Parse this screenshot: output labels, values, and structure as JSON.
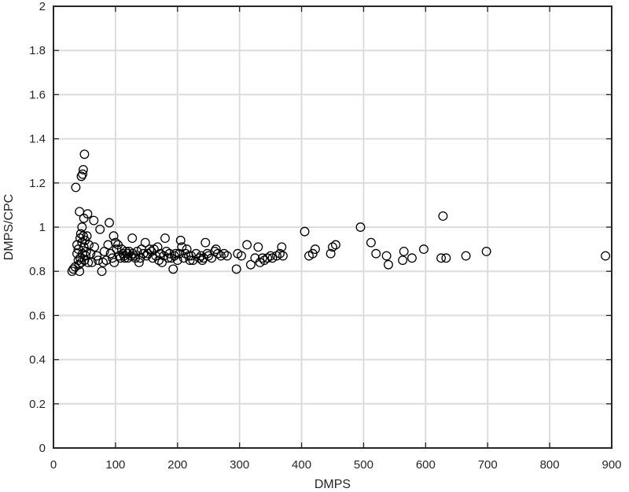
{
  "chart_data": {
    "type": "scatter",
    "title": "",
    "xlabel": "DMPS",
    "ylabel": "DMPS/CPC",
    "xlim": [
      0,
      900
    ],
    "ylim": [
      0,
      2
    ],
    "xticks": [
      0,
      100,
      200,
      300,
      400,
      500,
      600,
      700,
      800,
      900
    ],
    "yticks": [
      0,
      0.2,
      0.4,
      0.6,
      0.8,
      1,
      1.2,
      1.4,
      1.6,
      1.8,
      2
    ],
    "xtick_labels": [
      "0",
      "100",
      "200",
      "300",
      "400",
      "500",
      "600",
      "700",
      "800",
      "900"
    ],
    "ytick_labels": [
      "0",
      "0.2",
      "0.4",
      "0.6",
      "0.8",
      "1",
      "1.2",
      "1.4",
      "1.6",
      "1.8",
      "2"
    ],
    "grid": true,
    "marker": "open-circle",
    "series": [
      {
        "color": "#000000",
        "points": [
          [
            30,
            0.8
          ],
          [
            32,
            0.81
          ],
          [
            35,
            0.82
          ],
          [
            36,
            1.18
          ],
          [
            38,
            0.88
          ],
          [
            38,
            0.92
          ],
          [
            40,
            0.85
          ],
          [
            40,
            0.9
          ],
          [
            41,
            0.83
          ],
          [
            42,
            1.07
          ],
          [
            42,
            0.8
          ],
          [
            43,
            0.95
          ],
          [
            43,
            0.86
          ],
          [
            44,
            0.97
          ],
          [
            45,
            0.84
          ],
          [
            45,
            1.23
          ],
          [
            46,
            1.0
          ],
          [
            46,
            0.93
          ],
          [
            47,
            0.88
          ],
          [
            47,
            1.24
          ],
          [
            48,
            0.96
          ],
          [
            48,
            1.26
          ],
          [
            49,
            0.91
          ],
          [
            49,
            1.04
          ],
          [
            50,
            0.85
          ],
          [
            50,
            1.33
          ],
          [
            51,
            0.94
          ],
          [
            52,
            0.87
          ],
          [
            53,
            0.89
          ],
          [
            54,
            0.96
          ],
          [
            55,
            1.06
          ],
          [
            56,
            0.84
          ],
          [
            57,
            0.92
          ],
          [
            60,
            0.88
          ],
          [
            62,
            0.84
          ],
          [
            65,
            1.03
          ],
          [
            66,
            0.91
          ],
          [
            70,
            0.87
          ],
          [
            72,
            0.85
          ],
          [
            75,
            0.99
          ],
          [
            78,
            0.8
          ],
          [
            80,
            0.84
          ],
          [
            82,
            0.89
          ],
          [
            85,
            0.85
          ],
          [
            88,
            0.92
          ],
          [
            90,
            1.02
          ],
          [
            92,
            0.88
          ],
          [
            95,
            0.86
          ],
          [
            97,
            0.96
          ],
          [
            98,
            0.84
          ],
          [
            100,
            0.93
          ],
          [
            102,
            0.9
          ],
          [
            104,
            0.92
          ],
          [
            106,
            0.87
          ],
          [
            108,
            0.86
          ],
          [
            110,
            0.9
          ],
          [
            112,
            0.88
          ],
          [
            114,
            0.87
          ],
          [
            115,
            0.86
          ],
          [
            117,
            0.89
          ],
          [
            119,
            0.88
          ],
          [
            120,
            0.86
          ],
          [
            122,
            0.89
          ],
          [
            125,
            0.87
          ],
          [
            127,
            0.95
          ],
          [
            128,
            0.88
          ],
          [
            130,
            0.87
          ],
          [
            132,
            0.86
          ],
          [
            135,
            0.89
          ],
          [
            138,
            0.84
          ],
          [
            140,
            0.86
          ],
          [
            142,
            0.9
          ],
          [
            145,
            0.88
          ],
          [
            148,
            0.93
          ],
          [
            150,
            0.87
          ],
          [
            152,
            0.88
          ],
          [
            155,
            0.9
          ],
          [
            158,
            0.89
          ],
          [
            160,
            0.86
          ],
          [
            162,
            0.9
          ],
          [
            165,
            0.87
          ],
          [
            168,
            0.91
          ],
          [
            170,
            0.85
          ],
          [
            172,
            0.88
          ],
          [
            175,
            0.84
          ],
          [
            178,
            0.87
          ],
          [
            180,
            0.95
          ],
          [
            182,
            0.89
          ],
          [
            185,
            0.86
          ],
          [
            187,
            0.88
          ],
          [
            190,
            0.86
          ],
          [
            193,
            0.81
          ],
          [
            195,
            0.87
          ],
          [
            197,
            0.88
          ],
          [
            200,
            0.85
          ],
          [
            203,
            0.88
          ],
          [
            205,
            0.94
          ],
          [
            207,
            0.91
          ],
          [
            210,
            0.86
          ],
          [
            213,
            0.88
          ],
          [
            215,
            0.9
          ],
          [
            218,
            0.87
          ],
          [
            220,
            0.85
          ],
          [
            222,
            0.87
          ],
          [
            225,
            0.85
          ],
          [
            230,
            0.88
          ],
          [
            235,
            0.86
          ],
          [
            238,
            0.87
          ],
          [
            240,
            0.85
          ],
          [
            242,
            0.86
          ],
          [
            245,
            0.93
          ],
          [
            248,
            0.88
          ],
          [
            250,
            0.87
          ],
          [
            255,
            0.86
          ],
          [
            260,
            0.89
          ],
          [
            262,
            0.9
          ],
          [
            265,
            0.88
          ],
          [
            270,
            0.87
          ],
          [
            275,
            0.88
          ],
          [
            280,
            0.87
          ],
          [
            295,
            0.81
          ],
          [
            297,
            0.88
          ],
          [
            303,
            0.87
          ],
          [
            312,
            0.92
          ],
          [
            318,
            0.83
          ],
          [
            325,
            0.86
          ],
          [
            330,
            0.91
          ],
          [
            333,
            0.84
          ],
          [
            337,
            0.86
          ],
          [
            340,
            0.85
          ],
          [
            345,
            0.86
          ],
          [
            350,
            0.87
          ],
          [
            353,
            0.86
          ],
          [
            360,
            0.87
          ],
          [
            365,
            0.88
          ],
          [
            368,
            0.91
          ],
          [
            370,
            0.87
          ],
          [
            405,
            0.98
          ],
          [
            412,
            0.87
          ],
          [
            418,
            0.88
          ],
          [
            422,
            0.9
          ],
          [
            447,
            0.88
          ],
          [
            450,
            0.91
          ],
          [
            455,
            0.92
          ],
          [
            495,
            1.0
          ],
          [
            512,
            0.93
          ],
          [
            520,
            0.88
          ],
          [
            537,
            0.87
          ],
          [
            540,
            0.83
          ],
          [
            563,
            0.85
          ],
          [
            565,
            0.89
          ],
          [
            578,
            0.86
          ],
          [
            597,
            0.9
          ],
          [
            625,
            0.86
          ],
          [
            628,
            1.05
          ],
          [
            633,
            0.86
          ],
          [
            665,
            0.87
          ],
          [
            698,
            0.89
          ],
          [
            890,
            0.87
          ]
        ]
      }
    ]
  }
}
